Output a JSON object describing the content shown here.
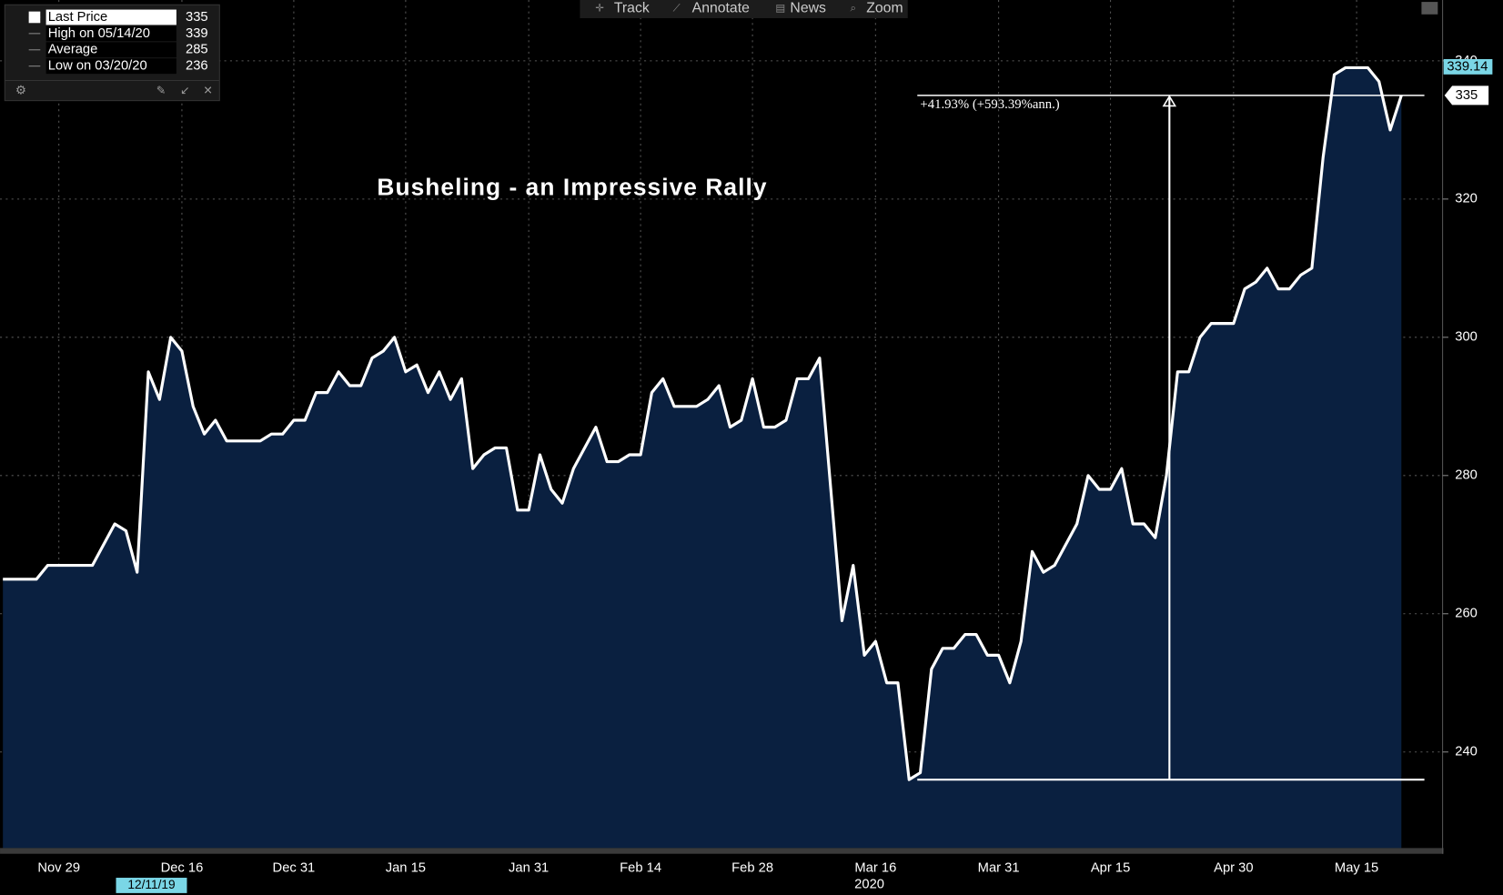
{
  "toolbar": [
    "Track",
    "Annotate",
    "News",
    "Zoom"
  ],
  "chart_data": {
    "type": "area",
    "title": "Busheling - an Impressive Rally",
    "color": "#ffffff",
    "fill": "#0a2040",
    "grid": true,
    "categories": [
      null,
      null,
      null,
      null,
      null,
      "Nov 29",
      null,
      null,
      null,
      null,
      null,
      null,
      null,
      null,
      null,
      null,
      "Dec 16",
      null,
      null,
      null,
      null,
      null,
      null,
      null,
      null,
      null,
      "Dec 31",
      null,
      null,
      null,
      null,
      null,
      null,
      null,
      null,
      null,
      "Jan 15",
      null,
      null,
      null,
      null,
      null,
      null,
      null,
      null,
      null,
      null,
      "Jan 31",
      null,
      null,
      null,
      null,
      null,
      null,
      null,
      null,
      null,
      "Feb 14",
      null,
      null,
      null,
      null,
      null,
      null,
      null,
      null,
      null,
      "Feb 28",
      null,
      null,
      null,
      null,
      null,
      null,
      null,
      null,
      null,
      null,
      "Mar 16",
      null,
      null,
      null,
      null,
      null,
      null,
      null,
      null,
      null,
      null,
      "Mar 31",
      null,
      null,
      null,
      null,
      null,
      null,
      null,
      null,
      null,
      "Apr 15",
      null,
      null,
      null,
      null,
      null,
      null,
      null,
      null,
      null,
      null,
      "Apr 30",
      null,
      null,
      null,
      null,
      null,
      null,
      null,
      null,
      null,
      null,
      "May 15",
      null,
      null,
      null,
      null
    ],
    "values": [
      265,
      265,
      265,
      265,
      267,
      267,
      267,
      267,
      267,
      270,
      273,
      272,
      266,
      295,
      291,
      300,
      298,
      290,
      286,
      288,
      285,
      285,
      285,
      285,
      286,
      286,
      288,
      288,
      292,
      292,
      295,
      293,
      293,
      297,
      298,
      300,
      295,
      296,
      292,
      295,
      291,
      294,
      281,
      283,
      284,
      284,
      275,
      275,
      283,
      278,
      276,
      281,
      284,
      287,
      282,
      282,
      283,
      283,
      292,
      294,
      290,
      290,
      290,
      291,
      293,
      287,
      288,
      294,
      287,
      287,
      288,
      294,
      294,
      297,
      278,
      259,
      267,
      254,
      256,
      250,
      250,
      236,
      237,
      252,
      255,
      255,
      257,
      257,
      254,
      254,
      250,
      256,
      269,
      266,
      267,
      270,
      273,
      280,
      278,
      278,
      281,
      273,
      273,
      271,
      280,
      295,
      295,
      300,
      302,
      302,
      302,
      307,
      308,
      310,
      307,
      307,
      309,
      310,
      326,
      338,
      339,
      339,
      339,
      337,
      330,
      335
    ],
    "ylim": [
      226.1,
      348.8
    ],
    "yticks": [
      240,
      260,
      280,
      300,
      320,
      340
    ],
    "x_extra_labels": [
      "12/11/19",
      "2020"
    ],
    "legend": [
      {
        "name": "Last Price",
        "value": 335
      },
      {
        "name": "High on 05/14/20",
        "value": 339
      },
      {
        "name": "Average",
        "value": 285
      },
      {
        "name": "Low on 03/20/20",
        "value": 236
      }
    ],
    "annotation": {
      "label": "+41.93% (+593.39%ann.)",
      "low": 236,
      "high": 335
    },
    "tags": {
      "high": 339.14,
      "last": 335
    }
  }
}
